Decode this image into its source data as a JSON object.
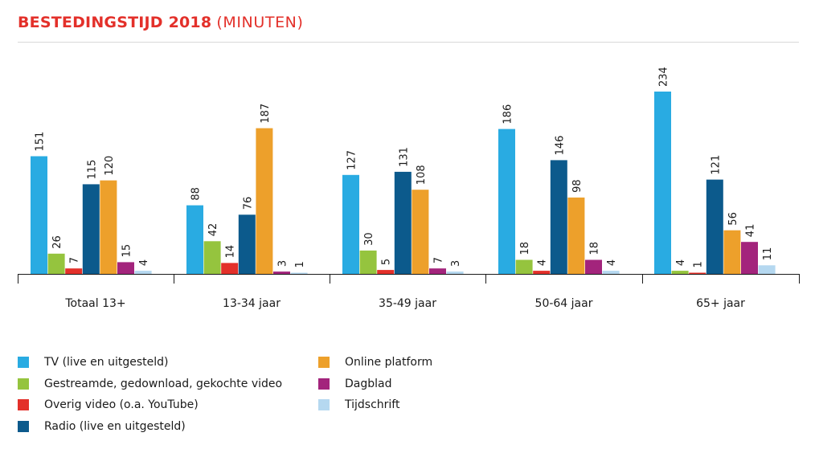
{
  "title": {
    "main": "BESTEDINGSTIJD 2018",
    "unit": "(MINUTEN)"
  },
  "chart_data": {
    "type": "bar",
    "title": "BESTEDINGSTIJD 2018 (MINUTEN)",
    "categories": [
      "Totaal 13+",
      "13-34 jaar",
      "35-49 jaar",
      "50-64 jaar",
      "65+ jaar"
    ],
    "series": [
      {
        "name": "TV (live en uitgesteld)",
        "color": "#29abe2",
        "values": [
          151,
          88,
          127,
          186,
          234
        ]
      },
      {
        "name": "Gestreamde, gedownload, gekochte video",
        "color": "#95c43e",
        "values": [
          26,
          42,
          30,
          18,
          4
        ]
      },
      {
        "name": "Overig video (o.a. YouTube)",
        "color": "#e3302a",
        "values": [
          7,
          14,
          5,
          4,
          1
        ]
      },
      {
        "name": "Radio (live en uitgesteld)",
        "color": "#0c5a8c",
        "values": [
          115,
          76,
          131,
          146,
          121
        ]
      },
      {
        "name": "Online platform",
        "color": "#eda02b",
        "values": [
          120,
          187,
          108,
          98,
          56
        ]
      },
      {
        "name": "Dagblad",
        "color": "#a3247c",
        "values": [
          15,
          3,
          7,
          18,
          41
        ]
      },
      {
        "name": "Tijdschrift",
        "color": "#b5d8f0",
        "values": [
          4,
          1,
          3,
          4,
          11
        ]
      }
    ],
    "ylim": [
      0,
      234
    ],
    "grid": false,
    "legend_position": "bottom"
  }
}
